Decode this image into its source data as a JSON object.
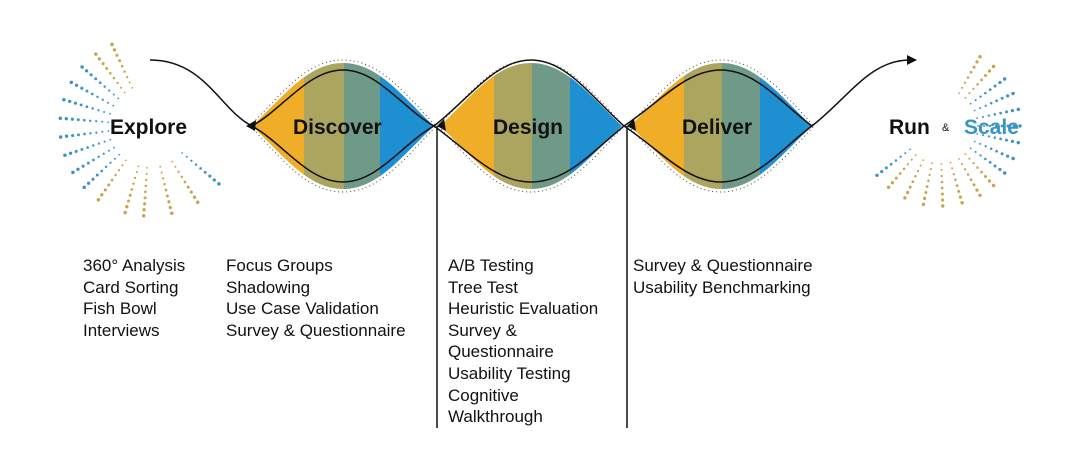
{
  "stages": {
    "explore": "Explore",
    "discover": "Discover",
    "design": "Design",
    "deliver": "Deliver",
    "run": "Run",
    "amp": "&",
    "scale": "Scale"
  },
  "methods": {
    "explore": [
      "360° Analysis",
      "Card Sorting",
      "Fish Bowl",
      "Interviews"
    ],
    "discover": [
      "Focus Groups",
      "Shadowing",
      "Use Case Validation",
      "Survey & Questionnaire"
    ],
    "design": [
      "A/B Testing",
      "Tree Test",
      "Heuristic Evaluation",
      "Survey &",
      "Questionnaire",
      "Usability Testing",
      "Cognitive",
      "Walkthrough"
    ],
    "deliver": [
      "Survey & Questionnaire",
      "Usability Benchmarking"
    ]
  },
  "colors": {
    "gold": "#f0ad28",
    "olive": "#aca560",
    "teal": "#6e9a87",
    "blue": "#1e90d2",
    "dot_gold": "#c9a24a",
    "dot_blue": "#3a94c4",
    "line": "#111111"
  }
}
